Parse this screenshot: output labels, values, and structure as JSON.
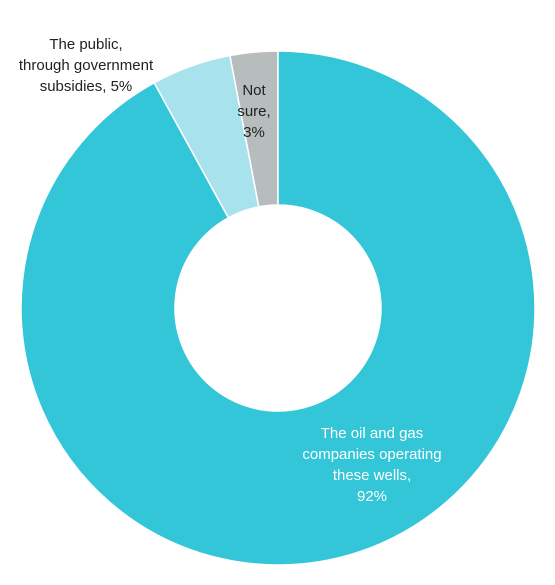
{
  "chart_data": {
    "type": "pie",
    "variant": "donut",
    "title": "",
    "slices": [
      {
        "label_lines": [
          "Not",
          "sure,",
          "3%"
        ],
        "value": 3,
        "color": "#b7bcbc",
        "label_color": "#222222"
      },
      {
        "label_lines": [
          "The oil and gas",
          "companies operating",
          "these wells,",
          "92%"
        ],
        "value": 92,
        "color": "#33c5d8",
        "label_color": "#ffffff"
      },
      {
        "label_lines": [
          "The public,",
          "through government",
          "subsidies, 5%"
        ],
        "value": 5,
        "color": "#a8e3ed",
        "label_color": "#222222"
      }
    ]
  }
}
